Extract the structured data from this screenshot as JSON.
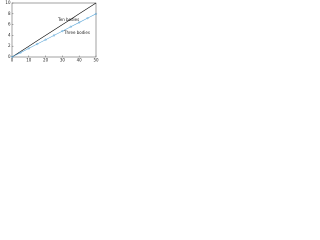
{
  "chart_data": {
    "type": "line",
    "x": [
      0,
      5,
      10,
      15,
      20,
      25,
      30,
      35,
      40,
      45,
      50
    ],
    "series": [
      {
        "name": "Ten bodies",
        "color": "#000000",
        "values": [
          0,
          1,
          2,
          3,
          4,
          5,
          6,
          7,
          8,
          9,
          10
        ]
      },
      {
        "name": "Three bodies",
        "color": "#5fa8d8",
        "values": [
          0,
          0.8,
          1.6,
          2.4,
          3.2,
          4,
          4.8,
          5.6,
          6.4,
          7.2,
          8
        ]
      }
    ],
    "xlim": [
      0,
      50
    ],
    "xticks": [
      0,
      10,
      20,
      30,
      40,
      50
    ],
    "ylim": [
      0,
      10
    ],
    "yticks": [
      0,
      2,
      4,
      6,
      8,
      10
    ]
  }
}
